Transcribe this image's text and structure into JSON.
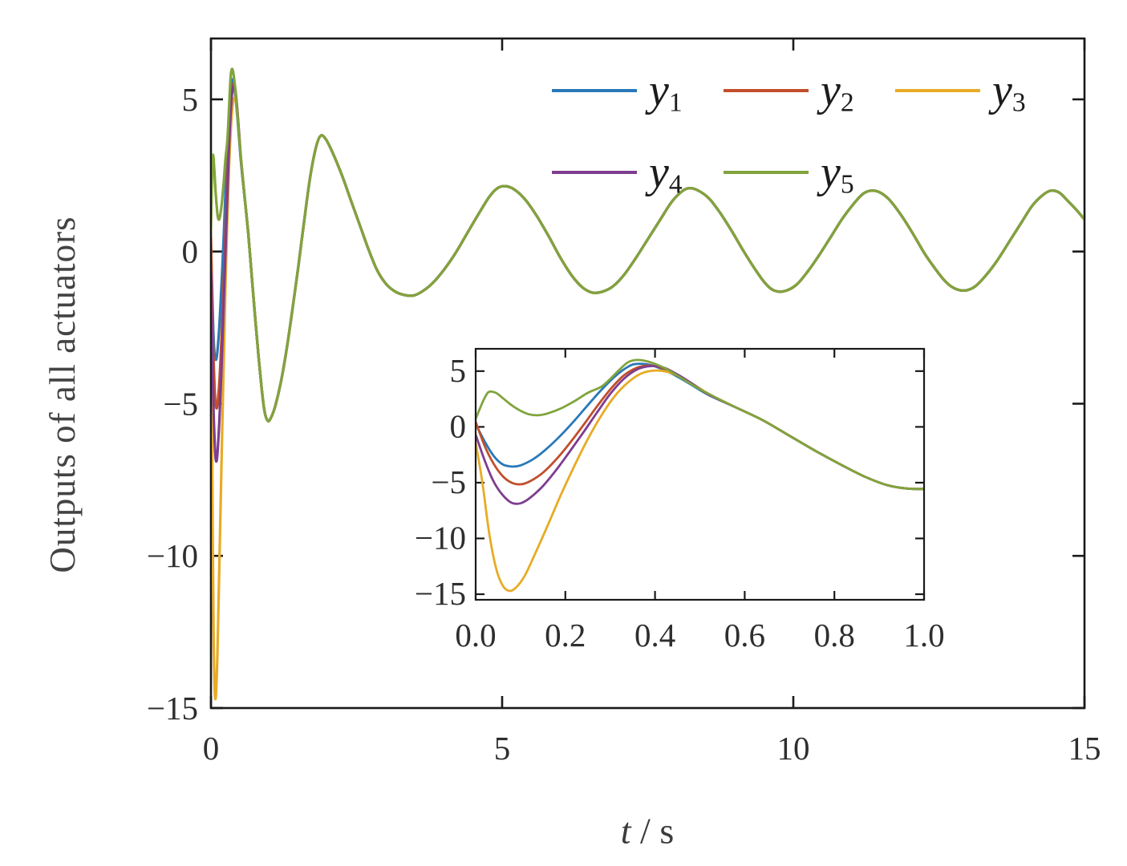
{
  "labels": {
    "ylabel": "Outputs of all actuators",
    "xlabel_var": "t",
    "xlabel_unit": " / s"
  },
  "legend": {
    "items": [
      {
        "base": "y",
        "sub": "1"
      },
      {
        "base": "y",
        "sub": "2"
      },
      {
        "base": "y",
        "sub": "3"
      },
      {
        "base": "y",
        "sub": "4"
      },
      {
        "base": "y",
        "sub": "5"
      }
    ]
  },
  "chart_data": {
    "type": "line",
    "xlabel": "t / s",
    "ylabel": "Outputs of all actuators",
    "grid": false,
    "legend_position": "top-right-inside",
    "frame_color": "#1a1a1a",
    "tick_label_color": "#2e2e2e",
    "main_axes": {
      "xlim": [
        0,
        15
      ],
      "ylim": [
        -15,
        7
      ],
      "xticks": [
        0,
        5,
        10,
        15
      ],
      "xtick_labels": [
        "0",
        "5",
        "10",
        "15"
      ],
      "yticks": [
        5,
        0,
        -5,
        -10,
        -15
      ],
      "ytick_labels": [
        "5",
        "0",
        "−5",
        "−10",
        "−15"
      ]
    },
    "inset_axes": {
      "xlim": [
        0,
        1
      ],
      "ylim": [
        -15.5,
        7
      ],
      "xticks": [
        0,
        0.2,
        0.4,
        0.6,
        0.8,
        1
      ],
      "xtick_labels": [
        "0.0",
        "0.2",
        "0.4",
        "0.6",
        "0.8",
        "1.0"
      ],
      "yticks": [
        5,
        0,
        -5,
        -10,
        -15
      ],
      "ytick_labels": [
        "5",
        "0",
        "−5",
        "−10",
        "−15"
      ]
    },
    "series": [
      {
        "name": "y1",
        "color": "#2979b9",
        "points": [
          [
            0,
            0.25
          ],
          [
            0.02,
            -1.3
          ],
          [
            0.04,
            -2.6
          ],
          [
            0.06,
            -3.35
          ],
          [
            0.08,
            -3.55
          ],
          [
            0.1,
            -3.45
          ],
          [
            0.13,
            -2.85
          ],
          [
            0.16,
            -1.9
          ],
          [
            0.19,
            -0.75
          ],
          [
            0.22,
            0.55
          ],
          [
            0.25,
            1.95
          ],
          [
            0.28,
            3.3
          ],
          [
            0.31,
            4.5
          ],
          [
            0.34,
            5.4
          ],
          [
            0.36,
            5.65
          ],
          [
            0.39,
            5.55
          ],
          [
            0.42,
            5.1
          ],
          [
            0.45,
            4.5
          ],
          [
            0.48,
            3.8
          ],
          [
            0.52,
            2.85
          ]
        ]
      },
      {
        "name": "y2",
        "color": "#c14f2b",
        "points": [
          [
            0,
            0.45
          ],
          [
            0.02,
            -1.7
          ],
          [
            0.04,
            -3.3
          ],
          [
            0.06,
            -4.4
          ],
          [
            0.08,
            -5.0
          ],
          [
            0.1,
            -5.15
          ],
          [
            0.12,
            -4.9
          ],
          [
            0.15,
            -4.1
          ],
          [
            0.18,
            -2.9
          ],
          [
            0.21,
            -1.45
          ],
          [
            0.24,
            0.15
          ],
          [
            0.27,
            1.8
          ],
          [
            0.3,
            3.35
          ],
          [
            0.33,
            4.6
          ],
          [
            0.36,
            5.3
          ],
          [
            0.385,
            5.5
          ],
          [
            0.41,
            5.35
          ],
          [
            0.44,
            4.9
          ],
          [
            0.47,
            4.2
          ],
          [
            0.5,
            3.4
          ],
          [
            0.52,
            2.9
          ]
        ]
      },
      {
        "name": "y3",
        "color": "#e8ab25",
        "points": [
          [
            0,
            -1.4
          ],
          [
            0.015,
            -5.0
          ],
          [
            0.03,
            -9.5
          ],
          [
            0.045,
            -12.6
          ],
          [
            0.06,
            -14.2
          ],
          [
            0.075,
            -14.7
          ],
          [
            0.09,
            -14.4
          ],
          [
            0.11,
            -13.3
          ],
          [
            0.13,
            -11.6
          ],
          [
            0.16,
            -8.9
          ],
          [
            0.19,
            -6.1
          ],
          [
            0.22,
            -3.5
          ],
          [
            0.25,
            -1.1
          ],
          [
            0.28,
            1.0
          ],
          [
            0.31,
            2.75
          ],
          [
            0.34,
            4.0
          ],
          [
            0.37,
            4.8
          ],
          [
            0.4,
            5.05
          ],
          [
            0.43,
            4.9
          ],
          [
            0.46,
            4.4
          ],
          [
            0.49,
            3.7
          ],
          [
            0.52,
            2.95
          ]
        ]
      },
      {
        "name": "y4",
        "color": "#7e3d8f",
        "points": [
          [
            0,
            -0.7
          ],
          [
            0.02,
            -3.0
          ],
          [
            0.04,
            -4.9
          ],
          [
            0.06,
            -6.1
          ],
          [
            0.08,
            -6.8
          ],
          [
            0.1,
            -6.85
          ],
          [
            0.12,
            -6.4
          ],
          [
            0.15,
            -5.3
          ],
          [
            0.18,
            -3.85
          ],
          [
            0.21,
            -2.2
          ],
          [
            0.24,
            -0.5
          ],
          [
            0.27,
            1.25
          ],
          [
            0.3,
            2.95
          ],
          [
            0.33,
            4.3
          ],
          [
            0.36,
            5.15
          ],
          [
            0.39,
            5.45
          ],
          [
            0.42,
            5.3
          ],
          [
            0.45,
            4.7
          ],
          [
            0.48,
            3.95
          ],
          [
            0.52,
            2.9
          ]
        ]
      },
      {
        "name": "y5",
        "color": "#80a43c",
        "points": [
          [
            0,
            0.7
          ],
          [
            0.01,
            1.7
          ],
          [
            0.02,
            2.6
          ],
          [
            0.03,
            3.15
          ],
          [
            0.045,
            3.05
          ],
          [
            0.06,
            2.6
          ],
          [
            0.08,
            1.95
          ],
          [
            0.1,
            1.45
          ],
          [
            0.12,
            1.12
          ],
          [
            0.14,
            1.05
          ],
          [
            0.16,
            1.2
          ],
          [
            0.19,
            1.65
          ],
          [
            0.22,
            2.3
          ],
          [
            0.25,
            3.05
          ],
          [
            0.28,
            3.6
          ],
          [
            0.3,
            4.3
          ],
          [
            0.32,
            5.1
          ],
          [
            0.34,
            5.8
          ],
          [
            0.36,
            6.0
          ],
          [
            0.385,
            5.85
          ],
          [
            0.42,
            5.3
          ],
          [
            0.45,
            4.6
          ],
          [
            0.48,
            3.85
          ],
          [
            0.52,
            2.95
          ]
        ]
      }
    ],
    "common_tail": [
      [
        0.58,
        1.75
      ],
      [
        0.64,
        0.6
      ],
      [
        0.7,
        -0.8
      ],
      [
        0.76,
        -2.2
      ],
      [
        0.82,
        -3.5
      ],
      [
        0.87,
        -4.5
      ],
      [
        0.92,
        -5.25
      ],
      [
        0.97,
        -5.55
      ],
      [
        1.02,
        -5.5
      ],
      [
        1.1,
        -5.1
      ],
      [
        1.2,
        -4.3
      ],
      [
        1.3,
        -3.2
      ],
      [
        1.4,
        -1.9
      ],
      [
        1.5,
        -0.5
      ],
      [
        1.6,
        1.0
      ],
      [
        1.7,
        2.4
      ],
      [
        1.8,
        3.4
      ],
      [
        1.88,
        3.8
      ],
      [
        1.97,
        3.7
      ],
      [
        2.1,
        3.2
      ],
      [
        2.25,
        2.5
      ],
      [
        2.4,
        1.7
      ],
      [
        2.55,
        0.9
      ],
      [
        2.7,
        0.1
      ],
      [
        2.85,
        -0.6
      ],
      [
        3.0,
        -1.05
      ],
      [
        3.15,
        -1.3
      ],
      [
        3.3,
        -1.42
      ],
      [
        3.47,
        -1.45
      ],
      [
        3.62,
        -1.32
      ],
      [
        3.8,
        -1.05
      ],
      [
        4.0,
        -0.6
      ],
      [
        4.2,
        -0.05
      ],
      [
        4.4,
        0.6
      ],
      [
        4.6,
        1.25
      ],
      [
        4.78,
        1.8
      ],
      [
        4.92,
        2.08
      ],
      [
        5.05,
        2.15
      ],
      [
        5.2,
        2.05
      ],
      [
        5.4,
        1.7
      ],
      [
        5.6,
        1.15
      ],
      [
        5.8,
        0.5
      ],
      [
        6.0,
        -0.2
      ],
      [
        6.2,
        -0.8
      ],
      [
        6.38,
        -1.18
      ],
      [
        6.55,
        -1.35
      ],
      [
        6.72,
        -1.32
      ],
      [
        6.9,
        -1.15
      ],
      [
        7.1,
        -0.75
      ],
      [
        7.3,
        -0.2
      ],
      [
        7.5,
        0.4
      ],
      [
        7.7,
        1.0
      ],
      [
        7.9,
        1.6
      ],
      [
        8.07,
        1.95
      ],
      [
        8.2,
        2.08
      ],
      [
        8.35,
        2.02
      ],
      [
        8.55,
        1.75
      ],
      [
        8.75,
        1.25
      ],
      [
        8.95,
        0.65
      ],
      [
        9.15,
        0.0
      ],
      [
        9.35,
        -0.6
      ],
      [
        9.52,
        -1.05
      ],
      [
        9.67,
        -1.28
      ],
      [
        9.85,
        -1.3
      ],
      [
        10.05,
        -1.1
      ],
      [
        10.25,
        -0.65
      ],
      [
        10.45,
        -0.1
      ],
      [
        10.65,
        0.5
      ],
      [
        10.85,
        1.1
      ],
      [
        11.05,
        1.6
      ],
      [
        11.2,
        1.9
      ],
      [
        11.33,
        2.0
      ],
      [
        11.48,
        1.95
      ],
      [
        11.65,
        1.7
      ],
      [
        11.85,
        1.2
      ],
      [
        12.05,
        0.6
      ],
      [
        12.25,
        -0.05
      ],
      [
        12.45,
        -0.6
      ],
      [
        12.62,
        -1.0
      ],
      [
        12.78,
        -1.22
      ],
      [
        12.95,
        -1.28
      ],
      [
        13.12,
        -1.15
      ],
      [
        13.3,
        -0.8
      ],
      [
        13.5,
        -0.3
      ],
      [
        13.7,
        0.3
      ],
      [
        13.9,
        0.9
      ],
      [
        14.1,
        1.5
      ],
      [
        14.28,
        1.85
      ],
      [
        14.42,
        2.0
      ],
      [
        14.57,
        1.93
      ],
      [
        14.72,
        1.65
      ],
      [
        14.87,
        1.35
      ],
      [
        15.0,
        1.05
      ]
    ]
  }
}
